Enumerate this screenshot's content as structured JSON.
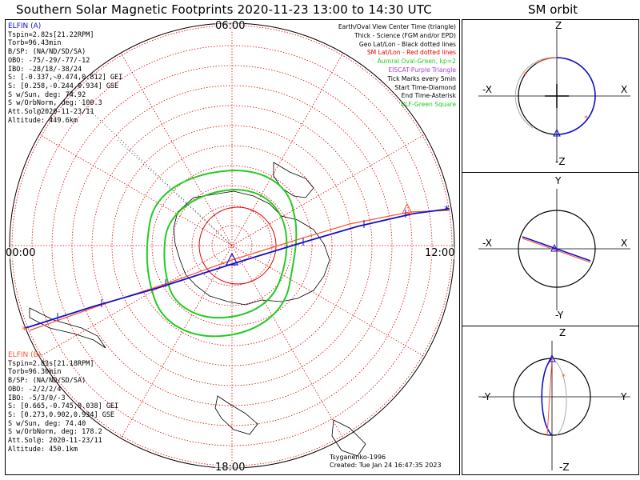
{
  "title": "Southern Solar Magnetic Footprints 2020-11-23 13:00 to 14:30 UTC",
  "sm_title": "SM orbit",
  "time_labels": {
    "top": "06:00",
    "left": "00:00",
    "right": "12:00",
    "bottom": "18:00"
  },
  "legend": [
    {
      "text": "Earth/Oval View Center Time (triangle)",
      "color": "#000000"
    },
    {
      "text": "Thick - Science (FGM and/or EPD)",
      "color": "#000000"
    },
    {
      "text": "Geo Lat/Lon - Black dotted lines",
      "color": "#000000"
    },
    {
      "text": "SM Lat/Lon - Red dotted lines",
      "color": "#e00000"
    },
    {
      "text": "Auroral Oval-Green, kp=2",
      "color": "#22cc22"
    },
    {
      "text": "EISCAT-Purple Triangle",
      "color": "#b040d0"
    },
    {
      "text": "Tick Marks every 5min",
      "color": "#000000"
    },
    {
      "text": "Start Time-Diamond",
      "color": "#000000"
    },
    {
      "text": "End Time-Asterisk",
      "color": "#000000"
    },
    {
      "text": "VLF-Green Square",
      "color": "#22cc22"
    }
  ],
  "elfin_a": {
    "name": "ELFIN (A)",
    "color": "#1010cc",
    "lines": [
      "Tspin=2.82s[21.22RPM]",
      "Torb=96.43min",
      "B/SP: (NA/ND/SD/SA)",
      "OBO: -75/-29/-77/-12",
      "IBO: -28/18/-38/24",
      "S: [-0.337,-0.474,0.812] GEI",
      "S: [0.258,-0.244,0.934] GSE",
      "S w/Sun, deg: 74.92",
      "S w/OrbNorm, deg: 100.3",
      "Att.Sol@2020-11-23/11",
      "Altitude: 449.6km"
    ]
  },
  "elfin_b": {
    "name": "ELFIN (B)",
    "color": "#ff5533",
    "lines": [
      "Tspin=2.83s[21.18RPM]",
      "Torb=96.30min",
      "B/SP: (NA/ND/SD/SA)",
      "OBO: -2/2/2/4",
      "IBO: -5/3/0/-3",
      "S: [0.665,-0.745,0.038] GEI",
      "S: [0.273,0.902,0.934] GSE",
      "S w/Sun, deg: 74.40",
      "S w/OrbNorm, deg: 178.2",
      "Att.Sol@: 2020-11-23/11",
      "Altitude: 450.1km"
    ]
  },
  "footer": {
    "model": "Tsyganenko-1996",
    "created": "Created: Tue Jan 24 16:47:35 2023"
  },
  "orbit_panels": [
    {
      "top": "Z",
      "bottom": "-Z",
      "left": "-X",
      "right": "X"
    },
    {
      "top": "Y",
      "bottom": "-Y",
      "left": "-X",
      "right": "X"
    },
    {
      "top": "Z",
      "bottom": "-Z",
      "left": "-Y",
      "right": "Y"
    }
  ],
  "colors": {
    "red": "#e00000",
    "green": "#22cc22",
    "blue": "#1010cc",
    "orange": "#ff5533",
    "gray": "#999999"
  }
}
